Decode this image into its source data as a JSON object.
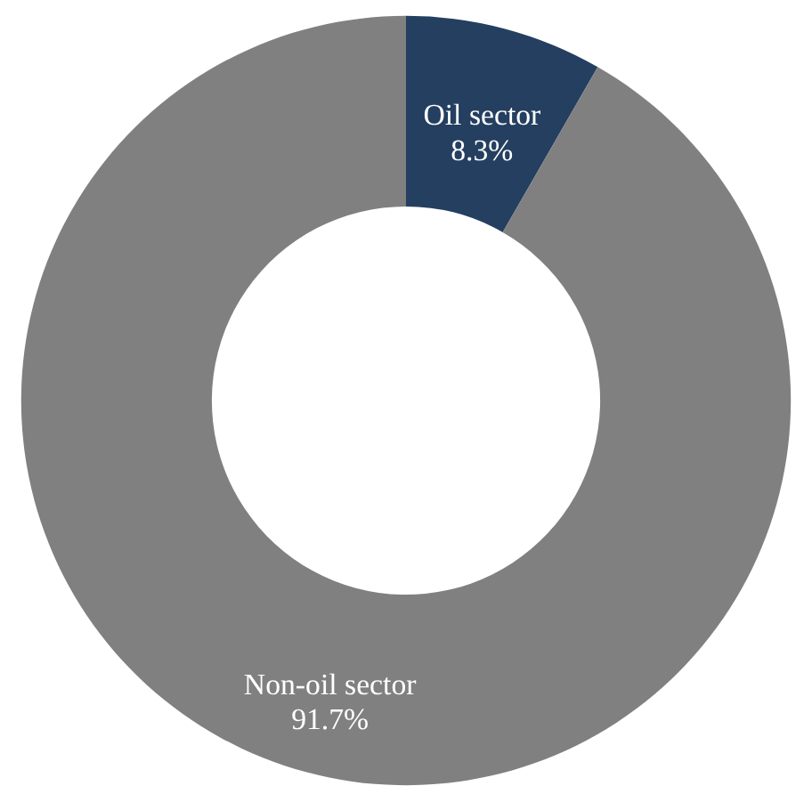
{
  "chart_data": {
    "type": "donut",
    "categories": [
      "Oil sector",
      "Non-oil sector"
    ],
    "values": [
      8.3,
      91.7
    ],
    "colors": [
      "#243f60",
      "#808080"
    ],
    "value_labels": [
      "8.3%",
      "91.7%"
    ]
  }
}
